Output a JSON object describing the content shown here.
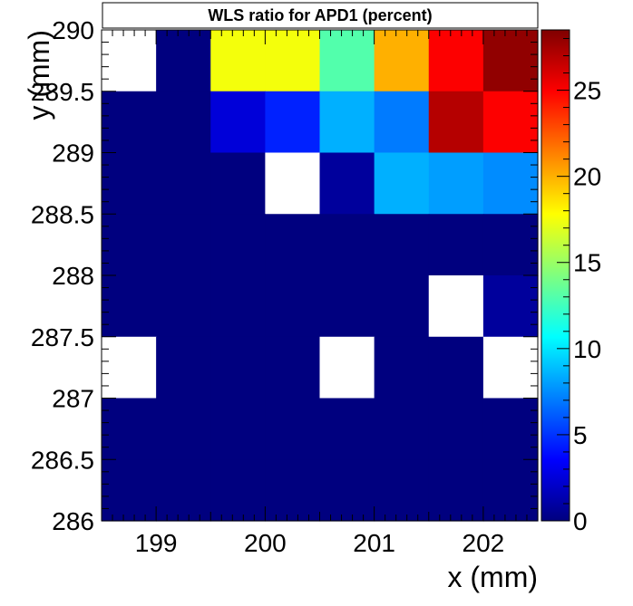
{
  "chart_data": {
    "type": "heatmap",
    "title": "WLS ratio for APD1 (percent)",
    "xlabel": "x (mm)",
    "ylabel": "y (mm)",
    "x_bins": [
      198.5,
      199.0,
      199.5,
      200.0,
      200.5,
      201.0,
      201.5,
      202.0,
      202.5
    ],
    "y_bins": [
      286.0,
      286.5,
      287.0,
      287.5,
      288.0,
      288.5,
      289.0,
      289.5,
      290.0
    ],
    "x_centers": [
      198.75,
      199.25,
      199.75,
      200.25,
      200.75,
      201.25,
      201.75,
      202.25
    ],
    "y_centers": [
      289.75,
      289.25,
      288.75,
      288.25,
      287.75,
      287.25,
      286.75,
      286.25
    ],
    "values": [
      [
        null,
        0,
        17.5,
        17.5,
        13,
        20,
        25,
        28
      ],
      [
        0,
        0,
        2.5,
        4.5,
        8.5,
        7,
        27,
        25
      ],
      [
        0,
        0,
        0,
        null,
        0.8,
        8.5,
        8,
        7.5
      ],
      [
        0,
        0,
        0,
        0,
        0,
        0,
        0,
        0
      ],
      [
        0,
        0,
        0,
        0,
        0,
        0,
        null,
        0.8
      ],
      [
        null,
        0,
        0,
        0,
        null,
        0,
        0,
        null
      ],
      [
        0,
        0,
        0,
        0,
        0,
        0,
        0,
        0
      ],
      [
        0,
        0,
        0,
        0,
        0,
        0,
        0,
        0
      ]
    ],
    "xlim": [
      198.5,
      202.5
    ],
    "ylim": [
      286,
      290
    ],
    "x_ticks": [
      "199",
      "200",
      "201",
      "202"
    ],
    "x_tick_values": [
      199,
      200,
      201,
      202
    ],
    "y_ticks": [
      "286",
      "286.5",
      "287",
      "287.5",
      "288",
      "288.5",
      "289",
      "289.5",
      "290"
    ],
    "y_tick_values": [
      286,
      286.5,
      287,
      287.5,
      288,
      288.5,
      289,
      289.5,
      290
    ],
    "colorbar": {
      "range": [
        0,
        28.5
      ],
      "ticks": [
        "0",
        "5",
        "10",
        "15",
        "20",
        "25"
      ],
      "tick_values": [
        0,
        5,
        10,
        15,
        20,
        25
      ]
    },
    "colormap": [
      "#00007f",
      "#0000ff",
      "#007fff",
      "#00ffff",
      "#7fff7f",
      "#ffff00",
      "#ff7f00",
      "#ff0000",
      "#7f0000"
    ],
    "empty_color": "#ffffff",
    "grid": false
  }
}
